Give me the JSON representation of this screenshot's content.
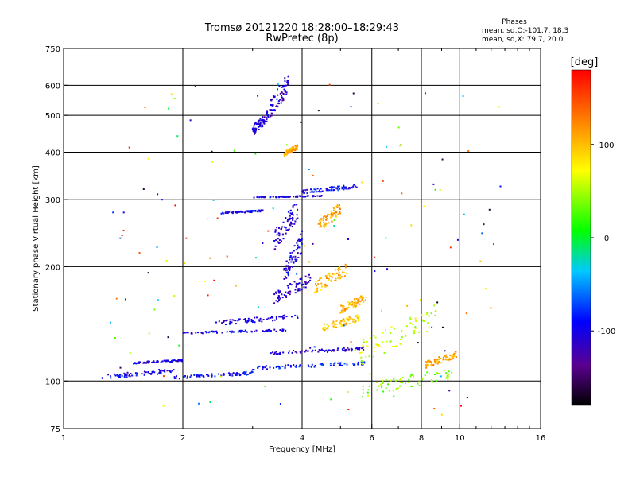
{
  "chart_data": {
    "type": "scatter",
    "title": "Tromsø 20121220 18:28:00–18:29:43",
    "subtitle": "RwPretec (8p)",
    "xlabel": "Frequency [MHz]",
    "ylabel": "Stationary phase Virtual Height [km]",
    "x_scale": "log",
    "y_scale": "log",
    "xlim": [
      1,
      16
    ],
    "ylim": [
      75,
      750
    ],
    "x_ticks": [
      1,
      2,
      4,
      6,
      8,
      10,
      16
    ],
    "x_tick_labels": [
      "1",
      "2",
      "4",
      "6",
      "8",
      "10",
      "16"
    ],
    "x_minor_ticks": [
      3,
      5,
      7,
      9,
      11,
      12,
      13,
      14,
      15
    ],
    "y_ticks": [
      75,
      100,
      200,
      300,
      400,
      500,
      600,
      750
    ],
    "y_tick_labels": [
      "75",
      "100",
      "200",
      "300",
      "400",
      "500",
      "600",
      "750"
    ],
    "grid": true,
    "phase_info": {
      "heading": "Phases",
      "line_o": "mean, sd,O:-101.7, 18.3",
      "line_x": "mean, sd,X: 79.7, 20.0"
    },
    "colorbar": {
      "label": "[deg]",
      "range": [
        -180,
        180
      ],
      "ticks": [
        100,
        0,
        -100
      ],
      "tick_labels": [
        "100",
        "0",
        "-100"
      ]
    },
    "traces": [
      {
        "x0": 1.25,
        "x1": 1.9,
        "y0": 101,
        "y1": 108,
        "phase": -100
      },
      {
        "x0": 1.5,
        "x1": 2.0,
        "y0": 111,
        "y1": 114,
        "phase": -105
      },
      {
        "x0": 1.9,
        "x1": 3.0,
        "y0": 101,
        "y1": 106,
        "phase": -95
      },
      {
        "x0": 3.0,
        "x1": 6.0,
        "y0": 107,
        "y1": 113,
        "phase": -85
      },
      {
        "x0": 3.3,
        "x1": 5.8,
        "y0": 117,
        "y1": 123,
        "phase": -110
      },
      {
        "x0": 2.0,
        "x1": 3.7,
        "y0": 133,
        "y1": 137,
        "phase": -100
      },
      {
        "x0": 2.4,
        "x1": 3.9,
        "y0": 140,
        "y1": 150,
        "phase": -105
      },
      {
        "x0": 3.4,
        "x1": 4.2,
        "y0": 160,
        "y1": 192,
        "phase": -110
      },
      {
        "x0": 4.5,
        "x1": 5.6,
        "y0": 135,
        "y1": 150,
        "phase": 95
      },
      {
        "x0": 5.0,
        "x1": 5.8,
        "y0": 150,
        "y1": 170,
        "phase": 105
      },
      {
        "x0": 4.3,
        "x1": 5.2,
        "y0": 170,
        "y1": 205,
        "phase": 100
      },
      {
        "x0": 4.4,
        "x1": 5.0,
        "y0": 245,
        "y1": 295,
        "phase": 110
      },
      {
        "x0": 2.5,
        "x1": 3.2,
        "y0": 275,
        "y1": 282,
        "phase": -100
      },
      {
        "x0": 3.0,
        "x1": 4.5,
        "y0": 303,
        "y1": 308,
        "phase": -105
      },
      {
        "x0": 4.0,
        "x1": 5.5,
        "y0": 310,
        "y1": 330,
        "phase": -95
      },
      {
        "x0": 3.0,
        "x1": 3.3,
        "y0": 440,
        "y1": 520,
        "phase": -110
      },
      {
        "x0": 3.3,
        "x1": 3.7,
        "y0": 480,
        "y1": 650,
        "phase": -115
      },
      {
        "x0": 3.6,
        "x1": 3.9,
        "y0": 390,
        "y1": 420,
        "phase": 110
      },
      {
        "x0": 3.4,
        "x1": 3.9,
        "y0": 220,
        "y1": 300,
        "phase": -110
      },
      {
        "x0": 3.6,
        "x1": 4.0,
        "y0": 180,
        "y1": 250,
        "phase": -105
      },
      {
        "x0": 5.6,
        "x1": 8.8,
        "y0": 110,
        "y1": 160,
        "phase": 60
      },
      {
        "x0": 5.6,
        "x1": 9.6,
        "y0": 90,
        "y1": 110,
        "phase": 40
      },
      {
        "x0": 8.2,
        "x1": 9.8,
        "y0": 108,
        "y1": 120,
        "phase": 110
      }
    ]
  }
}
